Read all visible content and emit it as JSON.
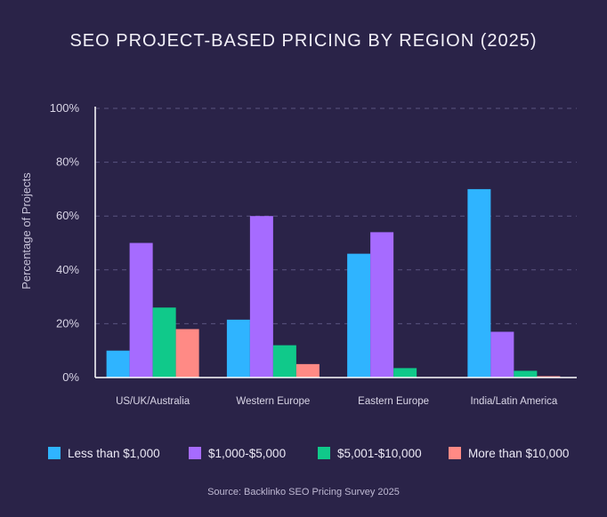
{
  "chart_data": {
    "type": "bar",
    "title": "SEO PROJECT-BASED PRICING BY REGION (2025)",
    "xlabel": "",
    "ylabel": "Percentage of Projects",
    "ylim": [
      0,
      100
    ],
    "yticks": [
      0,
      20,
      40,
      60,
      80,
      100
    ],
    "ytick_labels": [
      "0%",
      "20%",
      "40%",
      "60%",
      "80%",
      "100%"
    ],
    "grid": true,
    "legend_position": "bottom",
    "categories": [
      "US/UK/Australia",
      "Western Europe",
      "Eastern Europe",
      "India/Latin America"
    ],
    "series": [
      {
        "name": "Less than $1,000",
        "color": "#2fb4ff",
        "values": [
          10,
          21.5,
          46,
          70
        ]
      },
      {
        "name": "$1,000-$5,000",
        "color": "#a66bff",
        "values": [
          50,
          60,
          54,
          17
        ]
      },
      {
        "name": "$5,001-$10,000",
        "color": "#10c98a",
        "values": [
          26,
          12,
          3.5,
          2.5
        ]
      },
      {
        "name": "More than $10,000",
        "color": "#ff8a85",
        "values": [
          18,
          5,
          0,
          0.5
        ]
      }
    ],
    "source": "Source: Backlinko SEO Pricing Survey 2025"
  }
}
